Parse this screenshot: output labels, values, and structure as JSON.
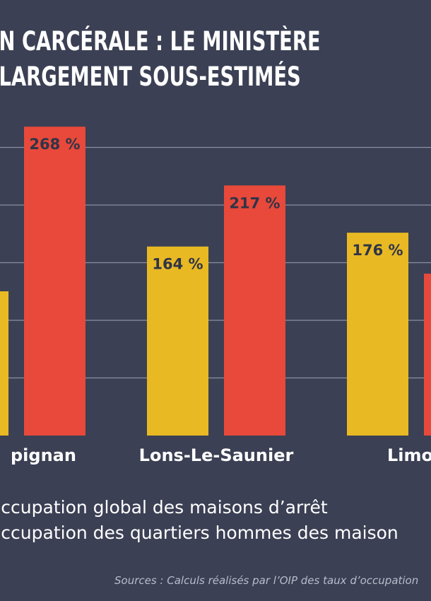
{
  "title_lines": [
    "N CARCÉRALE : LE MINISTÈRE DE LA JU",
    "LARGEMENT SOUS-ESTIMÉS"
  ],
  "chart_data": {
    "type": "bar",
    "categories": [
      "pignan",
      "Lons-Le-Saunier",
      "Limog"
    ],
    "series": [
      {
        "name": "occupation global des maisons d’arrêt",
        "color": "#e8b923",
        "values": [
          null,
          164,
          176
        ],
        "labels": [
          "",
          "164 %",
          "176 %"
        ]
      },
      {
        "name": "occupation des quartiers hommes des maison",
        "color": "#e8493a",
        "values": [
          268,
          217,
          null
        ],
        "labels": [
          "268 %",
          "217 %",
          ""
        ]
      }
    ],
    "ylim": [
      0,
      280
    ],
    "grid": true
  },
  "legend": [
    "occupation global des maisons d’arrêt",
    "occupation des quartiers hommes des maison"
  ],
  "source": "Sources : Calculs réalisés par l’OIP des taux d’occupation"
}
